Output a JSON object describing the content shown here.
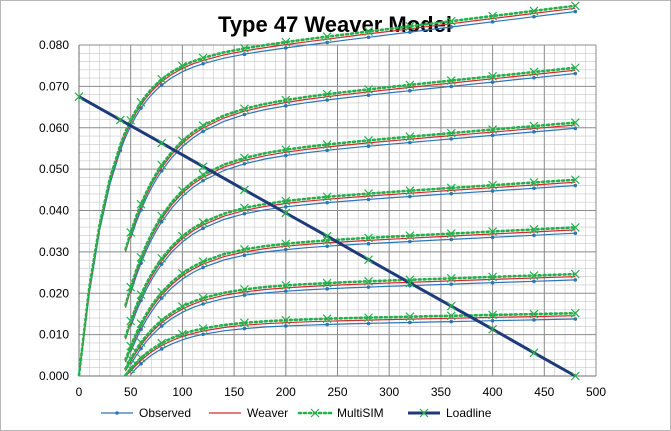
{
  "chart_data": {
    "type": "line",
    "title": "Type 47 Weaver Model",
    "xlabel": "",
    "ylabel": "",
    "xlim": [
      0,
      500
    ],
    "ylim": [
      0,
      0.08
    ],
    "x_ticks": [
      "0",
      "50",
      "100",
      "150",
      "200",
      "250",
      "300",
      "350",
      "400",
      "450",
      "500"
    ],
    "y_ticks": [
      "0.000",
      "0.010",
      "0.020",
      "0.030",
      "0.040",
      "0.050",
      "0.060",
      "0.070",
      "0.080"
    ],
    "x_tick_values": [
      0,
      50,
      100,
      150,
      200,
      250,
      300,
      350,
      400,
      450,
      500
    ],
    "y_tick_values": [
      0,
      0.01,
      0.02,
      0.03,
      0.04,
      0.05,
      0.06,
      0.07,
      0.08
    ],
    "minor_x_step": 10,
    "minor_y_step": 0.002,
    "grid": true,
    "legend_position": "bottom",
    "curve_x": [
      40,
      45,
      50,
      55,
      60,
      65,
      70,
      75,
      80,
      90,
      100,
      110,
      120,
      140,
      160,
      180,
      200,
      220,
      240,
      260,
      280,
      300,
      320,
      340,
      360,
      380,
      400,
      420,
      440,
      460,
      480
    ],
    "families": [
      {
        "a": 0.0775,
        "b": 30,
        "x0": 0
      },
      {
        "a": 0.0645,
        "b": 38,
        "x0": 20
      },
      {
        "a": 0.053,
        "b": 38,
        "x0": 30
      },
      {
        "a": 0.041,
        "b": 38,
        "x0": 35
      },
      {
        "a": 0.031,
        "b": 38,
        "x0": 40
      },
      {
        "a": 0.0212,
        "b": 38,
        "x0": 42
      },
      {
        "a": 0.013,
        "b": 38,
        "x0": 45
      }
    ],
    "series": [
      {
        "name": "Observed",
        "color": "#2e75b6",
        "marker": "dot",
        "marker_x": [
          40,
          60,
          80,
          120,
          160,
          200,
          240,
          280,
          320,
          360,
          400,
          440,
          480
        ],
        "offset": -0.0012
      },
      {
        "name": "Weaver",
        "color": "#d9272e",
        "marker": "none",
        "offset": -0.0004
      },
      {
        "name": "MultiSIM",
        "color": "#24b14c",
        "marker": "x",
        "dashed": true,
        "marker_x": [
          50,
          60,
          80,
          100,
          120,
          160,
          200,
          240,
          280,
          320,
          360,
          400,
          440,
          480
        ],
        "offset": 0.0002
      },
      {
        "name": "Loadline",
        "color": "#1f3a7a",
        "marker": "x",
        "x": [
          0,
          40,
          80,
          120,
          160,
          200,
          240,
          280,
          320,
          360,
          400,
          440,
          480
        ],
        "y": [
          0.0675,
          0.0619,
          0.0563,
          0.0506,
          0.045,
          0.0394,
          0.0338,
          0.0281,
          0.0225,
          0.0169,
          0.0113,
          0.0056,
          0.0
        ]
      }
    ]
  }
}
